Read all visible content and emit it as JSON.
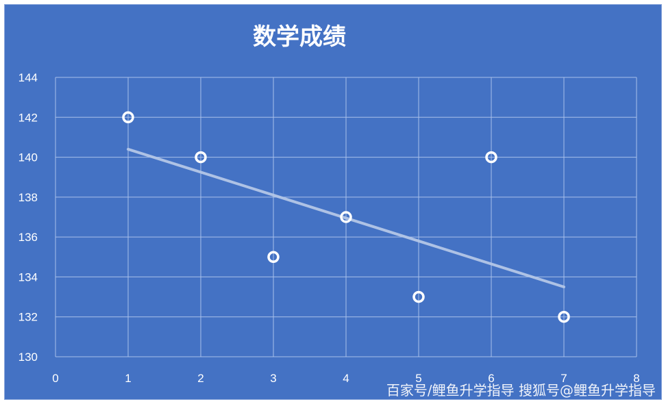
{
  "chart_data": {
    "type": "scatter",
    "title": "数学成绩",
    "xlabel": "",
    "ylabel": "",
    "xlim": [
      0,
      8
    ],
    "ylim": [
      130,
      144
    ],
    "x_ticks": [
      "0",
      "1",
      "2",
      "3",
      "4",
      "5",
      "6",
      "7",
      "8"
    ],
    "y_ticks": [
      "130",
      "132",
      "134",
      "136",
      "138",
      "140",
      "142",
      "144"
    ],
    "grid": true,
    "legend": "none",
    "series": [
      {
        "points": [
          {
            "x": 1,
            "y": 142
          },
          {
            "x": 2,
            "y": 140
          },
          {
            "x": 3,
            "y": 135
          },
          {
            "x": 4,
            "y": 137
          },
          {
            "x": 5,
            "y": 133
          },
          {
            "x": 6,
            "y": 140
          },
          {
            "x": 7,
            "y": 132
          }
        ],
        "color": "#ffffff"
      }
    ],
    "trendline": {
      "type": "linear",
      "x_start": 1,
      "y_start": 140.4,
      "x_end": 7,
      "y_end": 133.5,
      "color": "#b4c7e7"
    }
  },
  "watermark": "百家号/鲤鱼升学指导  搜狐号@鲤鱼升学指导",
  "colors": {
    "background": "#4472c4",
    "grid": "#a9c0ea",
    "text": "#ffffff"
  }
}
